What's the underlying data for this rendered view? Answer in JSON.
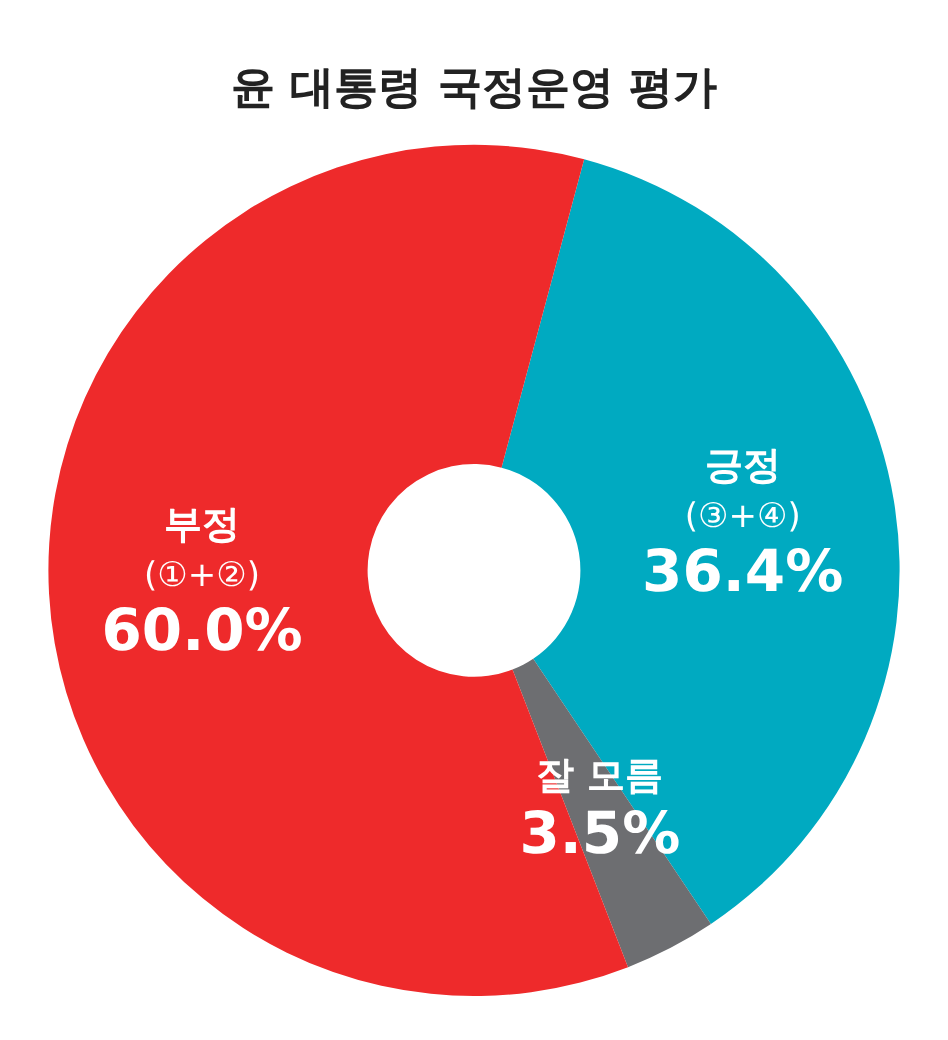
{
  "chart_data": {
    "type": "donut",
    "title": "윤 대통령 국정운영 평가",
    "categories": [
      "긍정\n(③+④)",
      "잘 모름",
      "부정\n(①+②)"
    ],
    "values": [
      36.4,
      3.5,
      60.0
    ],
    "colors": [
      "#00aac1",
      "#6d6e71",
      "#ee2a2b"
    ],
    "value_labels": [
      "36.4%",
      "3.5%",
      "60.0%"
    ],
    "legend": false
  }
}
